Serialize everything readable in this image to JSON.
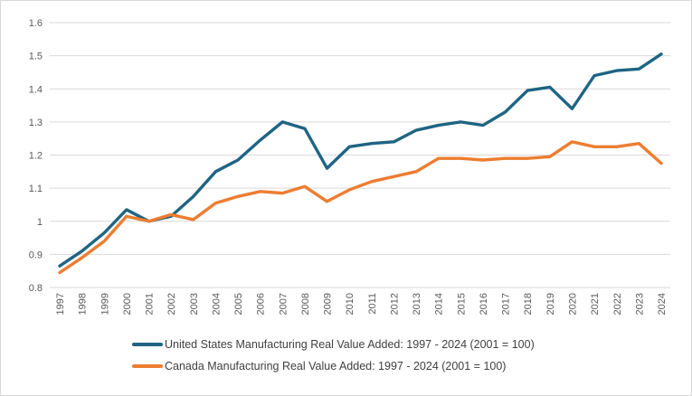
{
  "colors": {
    "background": "#FFFFFF",
    "border": "#D9D9D9",
    "gridline": "#D9D9D9",
    "axis_text": "#595959",
    "legend_text": "#404040",
    "us_line": "#1F6484",
    "canada_line": "#ED7D31"
  },
  "chart_data": {
    "type": "line",
    "x": [
      "1997",
      "1998",
      "1999",
      "2000",
      "2001",
      "2002",
      "2003",
      "2004",
      "2005",
      "2006",
      "2007",
      "2008",
      "2009",
      "2010",
      "2011",
      "2012",
      "2013",
      "2014",
      "2015",
      "2016",
      "2017",
      "2018",
      "2019",
      "2020",
      "2021",
      "2022",
      "2023",
      "2024"
    ],
    "series": [
      {
        "name": "United States Manufacturing Real Value Added: 1997 - 2024 (2001 = 100)",
        "color": "#1F6484",
        "values": [
          0.865,
          0.91,
          0.965,
          1.035,
          1.0,
          1.015,
          1.075,
          1.15,
          1.185,
          1.245,
          1.3,
          1.28,
          1.16,
          1.225,
          1.235,
          1.24,
          1.275,
          1.29,
          1.3,
          1.29,
          1.33,
          1.395,
          1.405,
          1.34,
          1.44,
          1.455,
          1.46,
          1.505
        ]
      },
      {
        "name": "Canada Manufacturing Real Value Added: 1997 - 2024 (2001 = 100)",
        "color": "#ED7D31",
        "values": [
          0.845,
          0.89,
          0.94,
          1.015,
          1.0,
          1.02,
          1.005,
          1.055,
          1.075,
          1.09,
          1.085,
          1.105,
          1.06,
          1.095,
          1.12,
          1.135,
          1.15,
          1.19,
          1.19,
          1.185,
          1.19,
          1.19,
          1.195,
          1.24,
          1.225,
          1.225,
          1.235,
          1.175
        ]
      }
    ],
    "ylim": [
      0.8,
      1.6
    ],
    "yticks": [
      0.8,
      0.9,
      1.0,
      1.1,
      1.2,
      1.3,
      1.4,
      1.5,
      1.6
    ],
    "ytick_labels": [
      "0.8",
      "0.9",
      "1",
      "1.1",
      "1.2",
      "1.3",
      "1.4",
      "1.5",
      "1.6"
    ],
    "grid": true,
    "legend_position": "bottom"
  }
}
